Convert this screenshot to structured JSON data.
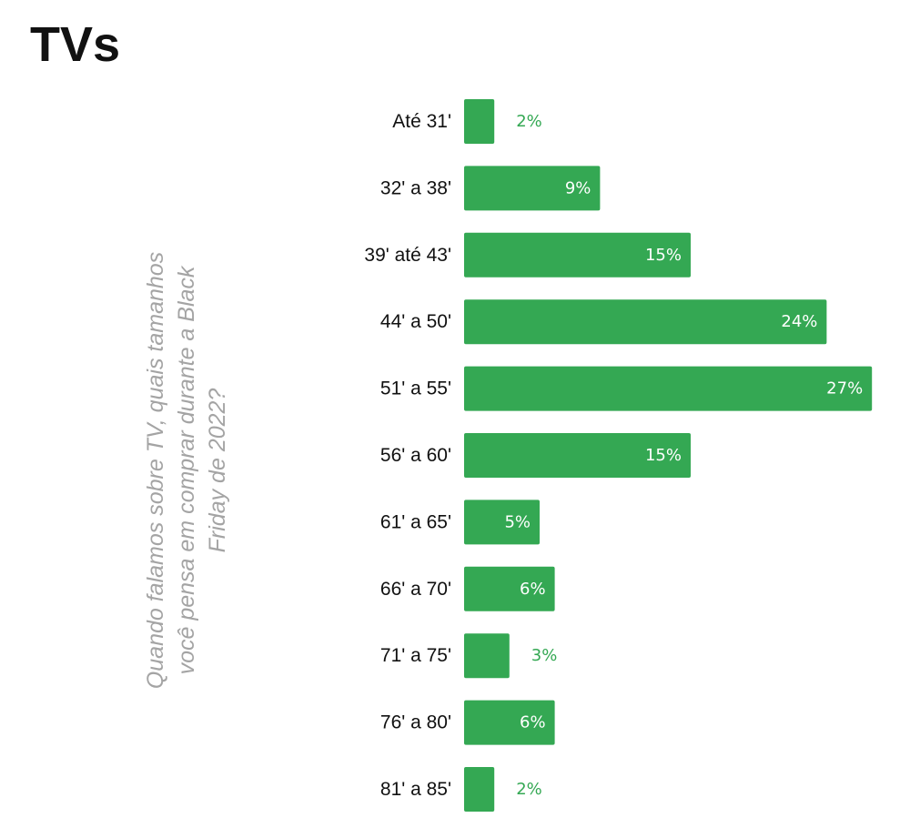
{
  "title": "TVs",
  "chart_data": {
    "type": "bar",
    "orientation": "horizontal",
    "title": "TVs",
    "ylabel": "Quando falamos sobre TV, quais tamanhos você pensa em comprar durante a Black Friday de 2022?",
    "ylabel_lines": [
      "Quando falamos sobre TV, quais tamanhos",
      "você pensa em comprar durante a Black",
      "Friday de 2022?"
    ],
    "categories": [
      "Até 31'",
      "32' a 38'",
      "39' até 43'",
      "44' a 50'",
      "51' a 55'",
      "56' a 60'",
      "61' a 65'",
      "66' a 70'",
      "71' a 75'",
      "76' a 80'",
      "81' a 85'"
    ],
    "values": [
      2,
      9,
      15,
      24,
      27,
      15,
      5,
      6,
      3,
      6,
      2
    ],
    "value_labels": [
      "2%",
      "9%",
      "15%",
      "24%",
      "27%",
      "15%",
      "5%",
      "6%",
      "3%",
      "6%",
      "2%"
    ],
    "unit": "%",
    "grid": false,
    "legend": "none",
    "colors": {
      "bar": "#34a853",
      "label_inside": "#ffffff",
      "label_outside": "#34a853"
    }
  }
}
